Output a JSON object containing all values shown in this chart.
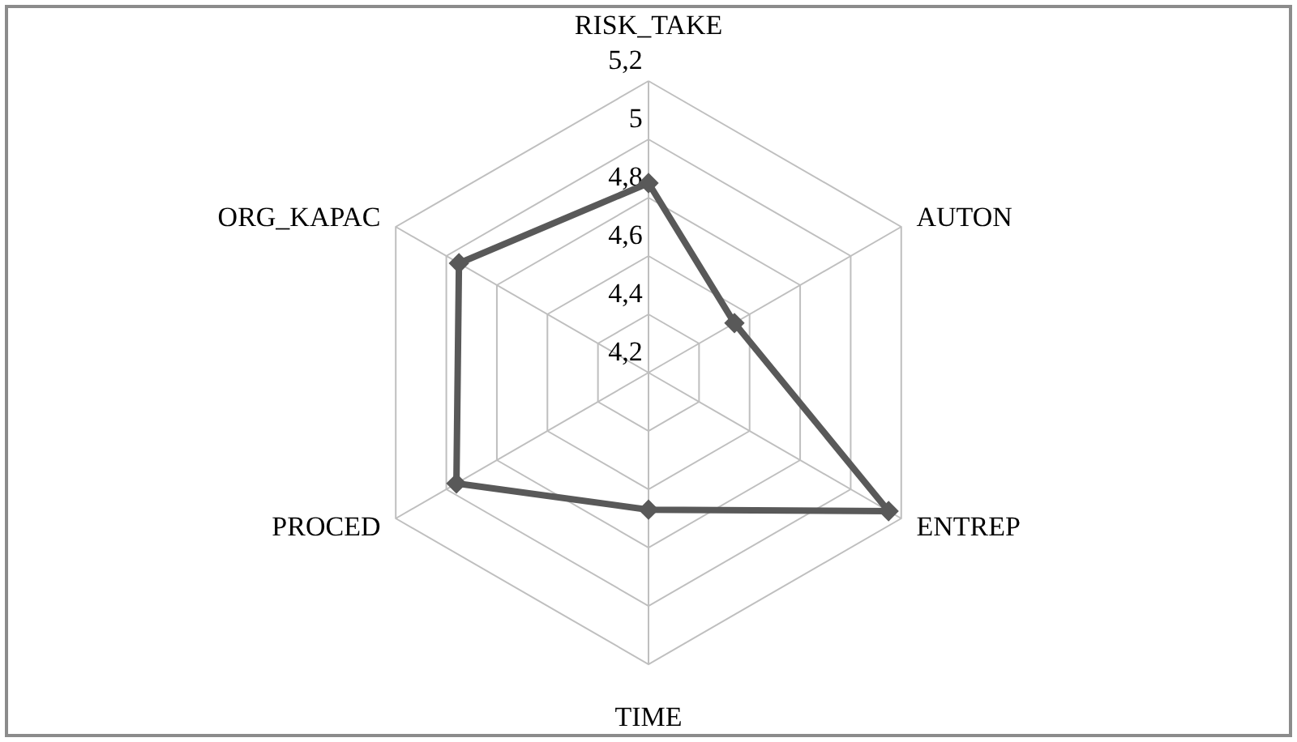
{
  "chart_data": {
    "type": "radar",
    "categories": [
      "RISK_TAKE",
      "AUTON",
      "ENTREP",
      "TIME",
      "PROCED",
      "ORG_KAPAC"
    ],
    "series": [
      {
        "color": "#595959",
        "values": [
          4.85,
          4.54,
          5.15,
          4.67,
          4.96,
          4.95
        ]
      }
    ],
    "ylim": [
      4.2,
      5.2
    ],
    "yticks": [
      {
        "value": 4.2,
        "label": "4,2"
      },
      {
        "value": 4.4,
        "label": "4,4"
      },
      {
        "value": 4.6,
        "label": "4,6"
      },
      {
        "value": 4.8,
        "label": "4,8"
      },
      {
        "value": 5,
        "label": "5"
      },
      {
        "value": 5.2,
        "label": "5,2"
      }
    ],
    "grid": true,
    "marker": "diamond"
  }
}
